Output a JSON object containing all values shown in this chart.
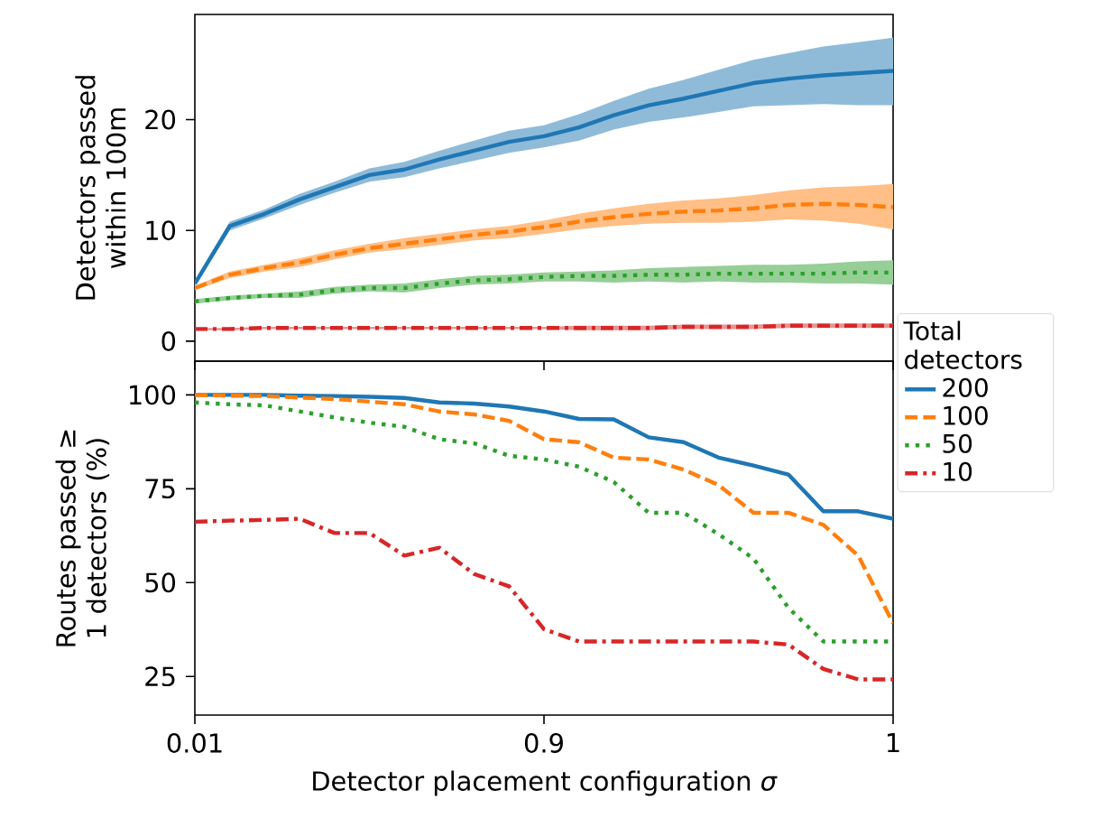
{
  "chart_data": [
    {
      "type": "line",
      "ylabel": "Detectors passed within 100m",
      "ylim": [
        -1.8,
        29.5
      ],
      "yticks": [
        0,
        10,
        20
      ],
      "tick_labels": "y",
      "legend": "right",
      "legend_title": "Total detectors",
      "categories": [
        "0.01",
        null,
        null,
        null,
        null,
        null,
        null,
        null,
        null,
        null,
        "0.9",
        null,
        null,
        null,
        null,
        null,
        null,
        null,
        null,
        null,
        "1"
      ],
      "series": [
        {
          "name": "200",
          "color": "#1f77b4",
          "line_style": "solid",
          "values": [
            5.2,
            10.4,
            11.5,
            12.8,
            13.9,
            15.0,
            15.5,
            16.4,
            17.2,
            18.0,
            18.5,
            19.3,
            20.4,
            21.3,
            21.9,
            22.6,
            23.3,
            23.7,
            24.0,
            24.2,
            24.4
          ],
          "upper": [
            5.5,
            10.8,
            11.9,
            13.3,
            14.4,
            15.6,
            16.2,
            17.2,
            18.1,
            19.0,
            19.5,
            20.5,
            21.7,
            22.8,
            23.6,
            24.5,
            25.4,
            26.0,
            26.6,
            27.0,
            27.4
          ],
          "lower": [
            4.9,
            10.0,
            11.1,
            12.3,
            13.4,
            14.4,
            14.8,
            15.6,
            16.3,
            17.0,
            17.5,
            18.1,
            19.1,
            19.8,
            20.2,
            20.7,
            21.2,
            21.3,
            21.4,
            21.3,
            21.3
          ]
        },
        {
          "name": "100",
          "color": "#ff7f0e",
          "line_style": "dashed",
          "values": [
            4.8,
            6.0,
            6.6,
            7.1,
            7.8,
            8.4,
            8.8,
            9.2,
            9.6,
            9.9,
            10.3,
            10.8,
            11.2,
            11.5,
            11.7,
            11.8,
            12.0,
            12.3,
            12.4,
            12.3,
            12.1
          ],
          "upper": [
            5.0,
            6.3,
            6.9,
            7.5,
            8.2,
            8.8,
            9.3,
            9.7,
            10.1,
            10.4,
            10.9,
            11.5,
            12.0,
            12.4,
            12.7,
            12.9,
            13.2,
            13.6,
            13.9,
            14.0,
            14.2
          ],
          "lower": [
            4.6,
            5.7,
            6.3,
            6.7,
            7.4,
            8.0,
            8.3,
            8.7,
            9.1,
            9.3,
            9.7,
            10.1,
            10.4,
            10.6,
            10.7,
            10.7,
            10.8,
            11.0,
            10.9,
            10.6,
            10.1
          ]
        },
        {
          "name": "50",
          "color": "#2ca02c",
          "line_style": "dotted",
          "values": [
            3.6,
            3.9,
            4.1,
            4.2,
            4.6,
            4.8,
            4.8,
            5.2,
            5.5,
            5.6,
            5.8,
            5.9,
            5.9,
            6.0,
            6.0,
            6.1,
            6.1,
            6.1,
            6.1,
            6.2,
            6.2
          ],
          "upper": [
            3.8,
            4.1,
            4.3,
            4.5,
            4.9,
            5.1,
            5.2,
            5.6,
            5.9,
            6.0,
            6.2,
            6.3,
            6.4,
            6.6,
            6.7,
            6.8,
            6.9,
            6.9,
            7.0,
            7.2,
            7.3
          ],
          "lower": [
            3.4,
            3.7,
            3.9,
            3.9,
            4.3,
            4.5,
            4.4,
            4.8,
            5.1,
            5.2,
            5.4,
            5.4,
            5.3,
            5.4,
            5.3,
            5.4,
            5.3,
            5.3,
            5.2,
            5.2,
            5.1
          ]
        },
        {
          "name": "10",
          "color": "#d62728",
          "line_style": "dashdot",
          "values": [
            1.1,
            1.1,
            1.2,
            1.2,
            1.2,
            1.2,
            1.2,
            1.2,
            1.2,
            1.2,
            1.2,
            1.2,
            1.2,
            1.2,
            1.3,
            1.3,
            1.3,
            1.4,
            1.4,
            1.4,
            1.4
          ],
          "upper": [
            1.2,
            1.2,
            1.3,
            1.3,
            1.3,
            1.3,
            1.3,
            1.3,
            1.3,
            1.3,
            1.3,
            1.4,
            1.4,
            1.4,
            1.5,
            1.5,
            1.5,
            1.6,
            1.6,
            1.6,
            1.6
          ],
          "lower": [
            1.0,
            1.0,
            1.1,
            1.1,
            1.1,
            1.1,
            1.1,
            1.1,
            1.1,
            1.1,
            1.1,
            1.0,
            1.0,
            1.0,
            1.1,
            1.1,
            1.1,
            1.2,
            1.2,
            1.2,
            1.2
          ]
        }
      ]
    },
    {
      "type": "line",
      "ylabel": "Routes passed ≥ 1 detectors (%)",
      "xlabel": "Detector placement configuration *σ*",
      "ylim": [
        14.7,
        109
      ],
      "yticks": [
        25,
        50,
        75,
        100
      ],
      "categories": [
        "0.01",
        null,
        null,
        null,
        null,
        null,
        null,
        null,
        null,
        null,
        "0.9",
        null,
        null,
        null,
        null,
        null,
        null,
        null,
        null,
        null,
        "1"
      ],
      "series": [
        {
          "color": "#1f77b4",
          "line_style": "solid",
          "values": [
            100,
            100,
            100,
            99.8,
            99.7,
            99.5,
            99.2,
            98.0,
            97.7,
            96.9,
            95.6,
            93.6,
            93.5,
            88.7,
            87.4,
            83.3,
            81.2,
            78.8,
            69.0,
            69.0,
            67.0
          ]
        },
        {
          "color": "#ff7f0e",
          "line_style": "dashed",
          "values": [
            100,
            99.8,
            99.7,
            99.3,
            98.9,
            98.2,
            97.5,
            95.6,
            94.8,
            93.1,
            88.2,
            87.4,
            83.3,
            82.8,
            80.1,
            76.0,
            68.6,
            68.6,
            65.4,
            57.2,
            39.2
          ]
        },
        {
          "color": "#2ca02c",
          "line_style": "dotted",
          "values": [
            98.0,
            97.5,
            97.2,
            95.6,
            94.0,
            92.6,
            91.5,
            88.2,
            87.1,
            83.8,
            82.8,
            80.9,
            76.8,
            68.6,
            68.6,
            62.9,
            56.4,
            43.3,
            34.3,
            34.3,
            34.3
          ]
        },
        {
          "color": "#d62728",
          "line_style": "dashdot",
          "values": [
            66.2,
            66.5,
            66.7,
            67.0,
            63.2,
            63.2,
            57.2,
            59.3,
            52.3,
            49.0,
            37.6,
            34.3,
            34.3,
            34.3,
            34.3,
            34.3,
            34.3,
            33.5,
            27.0,
            24.2,
            24.2
          ]
        }
      ]
    }
  ]
}
